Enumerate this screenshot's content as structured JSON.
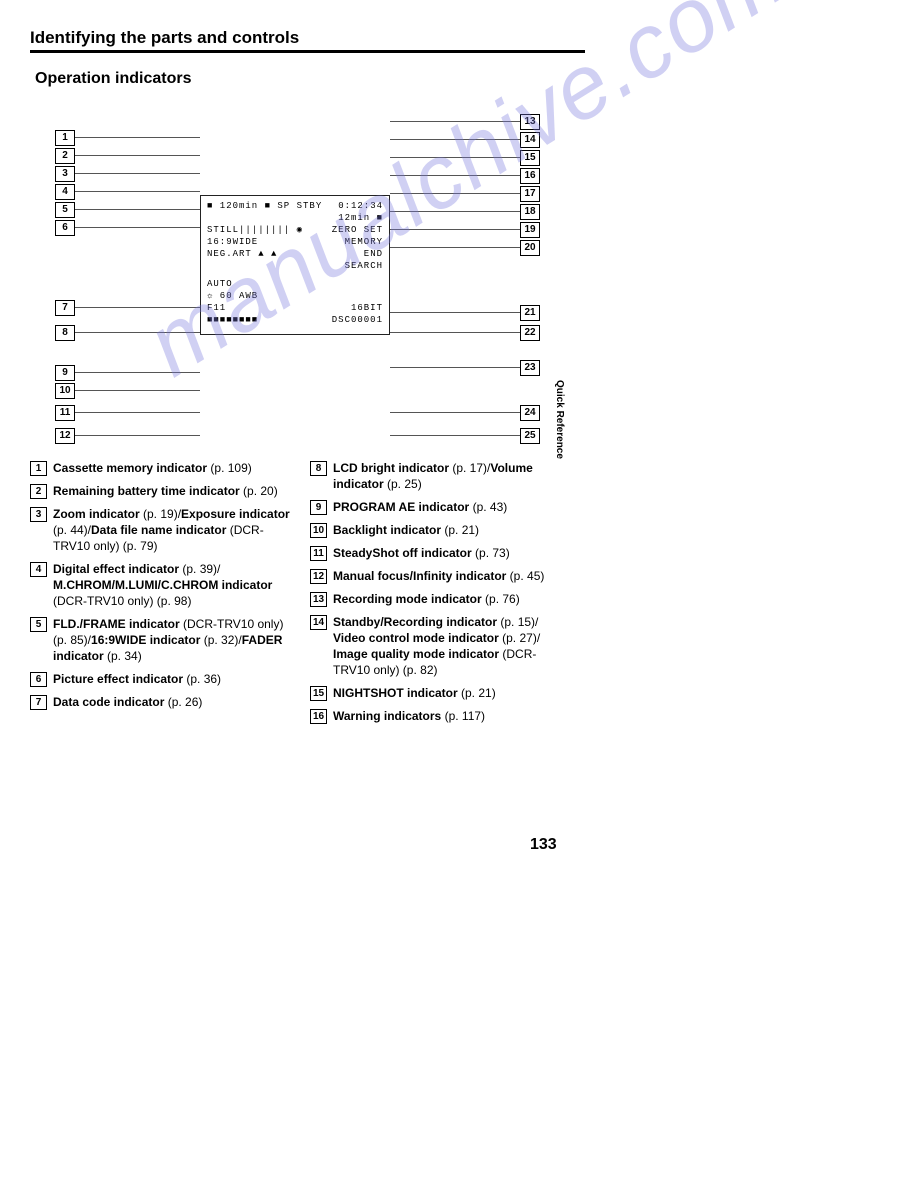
{
  "heading": "Identifying the parts and controls",
  "subheading": "Operation indicators",
  "side_label": "Quick Reference",
  "page_number": "133",
  "watermark": "manualchive.com",
  "diagram": {
    "lcd_rows": {
      "r1_left": "■ 120min ■ SP STBY",
      "r1_right": "0:12:34",
      "r2_left": "",
      "r2_right": "12min ■",
      "r3_left": "STILL||||||||   ◉",
      "r3_right": "ZERO SET",
      "r4_left": "16:9WIDE",
      "r4_right": "MEMORY",
      "r5_left": "NEG.ART  ▲ ▲",
      "r5_right": "END",
      "r6_left": "",
      "r6_right": "SEARCH",
      "r7_left": "AUTO",
      "r7_right": "",
      "r8_left": "☼ 60 AWB",
      "r8_right": "",
      "r9_left": "F11",
      "r9_right": "16BIT",
      "r10_left": "■■■■■■■■",
      "r10_right": "DSC00001"
    },
    "left_numbers": [
      "1",
      "2",
      "3",
      "4",
      "5",
      "6",
      "7",
      "8",
      "9",
      "10",
      "11",
      "12"
    ],
    "right_numbers": [
      "13",
      "14",
      "15",
      "16",
      "17",
      "18",
      "19",
      "20",
      "21",
      "22",
      "23",
      "24",
      "25"
    ],
    "left_y": [
      30,
      48,
      66,
      84,
      102,
      120,
      200,
      225,
      265,
      283,
      305,
      328
    ],
    "right_y": [
      14,
      32,
      50,
      68,
      86,
      104,
      122,
      140,
      205,
      225,
      260,
      305,
      328
    ],
    "colors": {
      "line": "#555555",
      "text": "#000000",
      "border": "#000000",
      "bg": "#ffffff",
      "watermark": "rgba(120,120,220,0.35)"
    }
  },
  "legend_left": [
    {
      "n": "1",
      "segments": [
        {
          "b": true,
          "t": "Cassette memory indicator"
        },
        {
          "b": false,
          "t": " (p. 109)"
        }
      ]
    },
    {
      "n": "2",
      "segments": [
        {
          "b": true,
          "t": "Remaining battery time indicator"
        },
        {
          "b": false,
          "t": " (p. 20)"
        }
      ]
    },
    {
      "n": "3",
      "segments": [
        {
          "b": true,
          "t": "Zoom indicator"
        },
        {
          "b": false,
          "t": " (p. 19)/"
        },
        {
          "b": true,
          "t": "Exposure indicator"
        },
        {
          "b": false,
          "t": " (p. 44)/"
        },
        {
          "b": true,
          "t": "Data file name indicator"
        },
        {
          "b": false,
          "t": " (DCR-TRV10 only) (p. 79)"
        }
      ]
    },
    {
      "n": "4",
      "segments": [
        {
          "b": true,
          "t": "Digital effect indicator"
        },
        {
          "b": false,
          "t": " (p. 39)/ "
        },
        {
          "b": true,
          "t": "M.CHROM/M.LUMI/C.CHROM indicator"
        },
        {
          "b": false,
          "t": " (DCR-TRV10 only) (p. 98)"
        }
      ]
    },
    {
      "n": "5",
      "segments": [
        {
          "b": true,
          "t": "FLD./FRAME indicator"
        },
        {
          "b": false,
          "t": " (DCR-TRV10 only) (p. 85)/"
        },
        {
          "b": true,
          "t": "16:9WIDE indicator"
        },
        {
          "b": false,
          "t": " (p. 32)/"
        },
        {
          "b": true,
          "t": "FADER indicator"
        },
        {
          "b": false,
          "t": " (p. 34)"
        }
      ]
    },
    {
      "n": "6",
      "segments": [
        {
          "b": true,
          "t": "Picture effect indicator"
        },
        {
          "b": false,
          "t": " (p. 36)"
        }
      ]
    },
    {
      "n": "7",
      "segments": [
        {
          "b": true,
          "t": "Data code indicator"
        },
        {
          "b": false,
          "t": " (p. 26)"
        }
      ]
    }
  ],
  "legend_right": [
    {
      "n": "8",
      "segments": [
        {
          "b": true,
          "t": "LCD bright indicator"
        },
        {
          "b": false,
          "t": " (p. 17)/"
        },
        {
          "b": true,
          "t": "Volume indicator"
        },
        {
          "b": false,
          "t": " (p. 25)"
        }
      ]
    },
    {
      "n": "9",
      "segments": [
        {
          "b": true,
          "t": "PROGRAM AE indicator"
        },
        {
          "b": false,
          "t": " (p. 43)"
        }
      ]
    },
    {
      "n": "10",
      "segments": [
        {
          "b": true,
          "t": "Backlight indicator"
        },
        {
          "b": false,
          "t": " (p. 21)"
        }
      ]
    },
    {
      "n": "11",
      "segments": [
        {
          "b": true,
          "t": "SteadyShot off indicator"
        },
        {
          "b": false,
          "t": " (p. 73)"
        }
      ]
    },
    {
      "n": "12",
      "segments": [
        {
          "b": true,
          "t": "Manual focus/Infinity indicator"
        },
        {
          "b": false,
          "t": " (p. 45)"
        }
      ]
    },
    {
      "n": "13",
      "segments": [
        {
          "b": true,
          "t": "Recording mode indicator"
        },
        {
          "b": false,
          "t": " (p. 76)"
        }
      ]
    },
    {
      "n": "14",
      "segments": [
        {
          "b": true,
          "t": "Standby/Recording indicator"
        },
        {
          "b": false,
          "t": " (p. 15)/ "
        },
        {
          "b": true,
          "t": "Video control mode indicator"
        },
        {
          "b": false,
          "t": " (p. 27)/ "
        },
        {
          "b": true,
          "t": "Image quality mode indicator"
        },
        {
          "b": false,
          "t": " (DCR-TRV10 only) (p. 82)"
        }
      ]
    },
    {
      "n": "15",
      "segments": [
        {
          "b": true,
          "t": "NIGHTSHOT indicator"
        },
        {
          "b": false,
          "t": " (p. 21)"
        }
      ]
    },
    {
      "n": "16",
      "segments": [
        {
          "b": true,
          "t": "Warning indicators"
        },
        {
          "b": false,
          "t": " (p. 117)"
        }
      ]
    }
  ]
}
